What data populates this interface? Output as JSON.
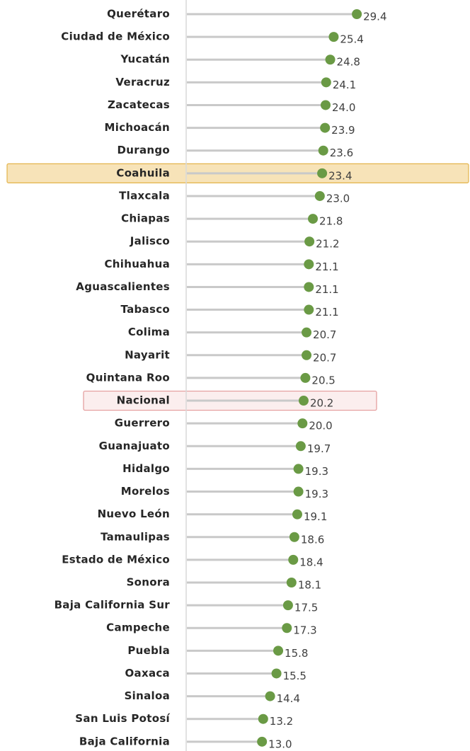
{
  "chart_data": {
    "type": "lollipop",
    "orientation": "horizontal",
    "categories": [
      "Querétaro",
      "Ciudad de México",
      "Yucatán",
      "Veracruz",
      "Zacatecas",
      "Michoacán",
      "Durango",
      "Coahuila",
      "Tlaxcala",
      "Chiapas",
      "Jalisco",
      "Chihuahua",
      "Aguascalientes",
      "Tabasco",
      "Colima",
      "Nayarit",
      "Quintana Roo",
      "Nacional",
      "Guerrero",
      "Guanajuato",
      "Hidalgo",
      "Morelos",
      "Nuevo León",
      "Tamaulipas",
      "Estado de México",
      "Sonora",
      "Baja California Sur",
      "Campeche",
      "Puebla",
      "Oaxaca",
      "Sinaloa",
      "San Luis Potosí",
      "Baja California"
    ],
    "values": [
      29.4,
      25.4,
      24.8,
      24.1,
      24.0,
      23.9,
      23.6,
      23.4,
      23.0,
      21.8,
      21.2,
      21.1,
      21.1,
      21.1,
      20.7,
      20.7,
      20.5,
      20.2,
      20.0,
      19.7,
      19.3,
      19.3,
      19.1,
      18.6,
      18.4,
      18.1,
      17.5,
      17.3,
      15.8,
      15.5,
      14.4,
      13.2,
      13.0
    ],
    "value_labels": [
      "29.4",
      "25.4",
      "24.8",
      "24.1",
      "24.0",
      "23.9",
      "23.6",
      "23.4",
      "23.0",
      "21.8",
      "21.2",
      "21.1",
      "21.1",
      "21.1",
      "20.7",
      "20.7",
      "20.5",
      "20.2",
      "20.0",
      "19.7",
      "19.3",
      "19.3",
      "19.1",
      "18.6",
      "18.4",
      "18.1",
      "17.5",
      "17.3",
      "15.8",
      "15.5",
      "14.4",
      "13.2",
      "13.0"
    ],
    "color": "#6a9a45",
    "stem_color": "#c9c9c9",
    "xlim": [
      0,
      48
    ],
    "highlights": [
      {
        "index": 7,
        "fill": "#f7e3b8",
        "stroke": "#e3b34a"
      },
      {
        "index": 17,
        "fill": "#fbeeee",
        "stroke": "#e39a9a"
      }
    ]
  }
}
